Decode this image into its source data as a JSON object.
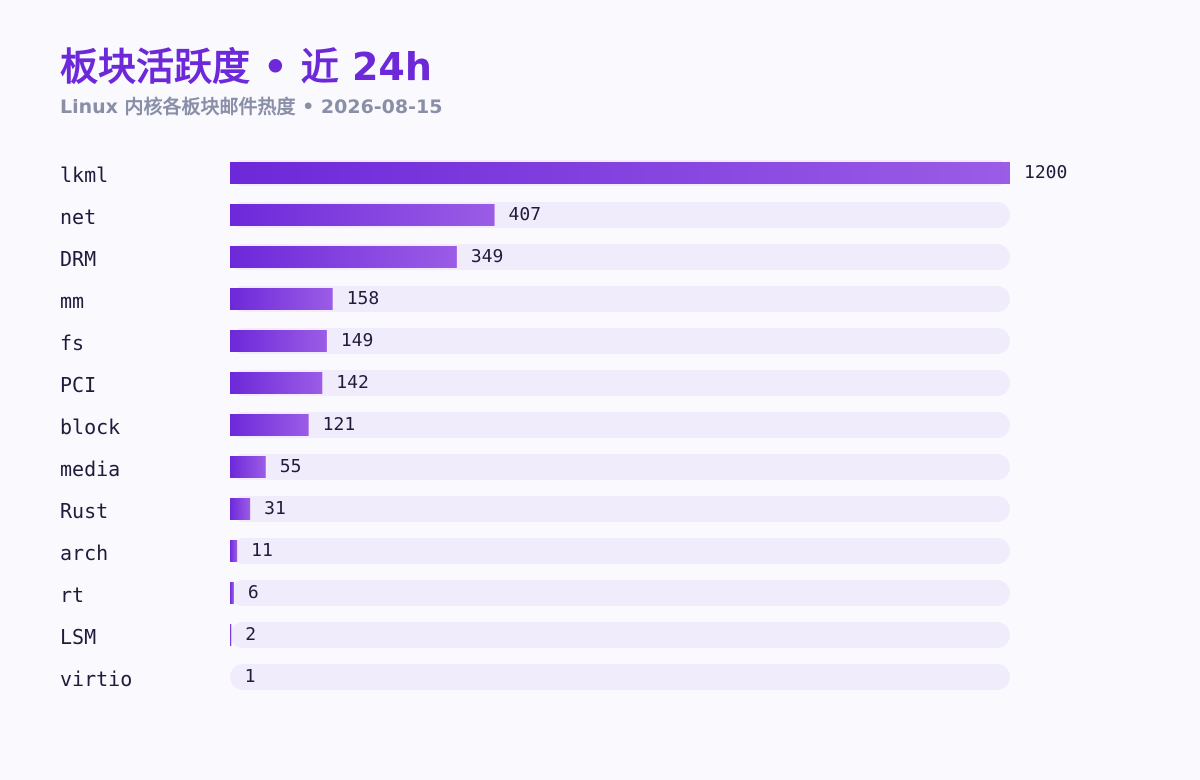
{
  "header": {
    "title": "板块活跃度 • 近 24h",
    "subtitle": "Linux 内核各板块邮件热度 • 2026-08-15"
  },
  "colors": {
    "accent": "#6d28d9",
    "bar_start": "#6d28d9",
    "bar_end": "#9b5ce6",
    "track": "#f1ecfc",
    "text": "#1f1b3a",
    "muted": "#8a8fa8"
  },
  "chart_data": {
    "type": "bar",
    "orientation": "horizontal",
    "categories": [
      "lkml",
      "net",
      "DRM",
      "mm",
      "fs",
      "PCI",
      "block",
      "media",
      "Rust",
      "arch",
      "rt",
      "LSM",
      "virtio"
    ],
    "values": [
      1200,
      407,
      349,
      158,
      149,
      142,
      121,
      55,
      31,
      11,
      6,
      2,
      1
    ],
    "title": "板块活跃度 • 近 24h",
    "subtitle": "Linux 内核各板块邮件热度 • 2026-08-15",
    "xlabel": "",
    "ylabel": "",
    "xlim": [
      0,
      1200
    ],
    "grid": false,
    "legend": "none"
  }
}
